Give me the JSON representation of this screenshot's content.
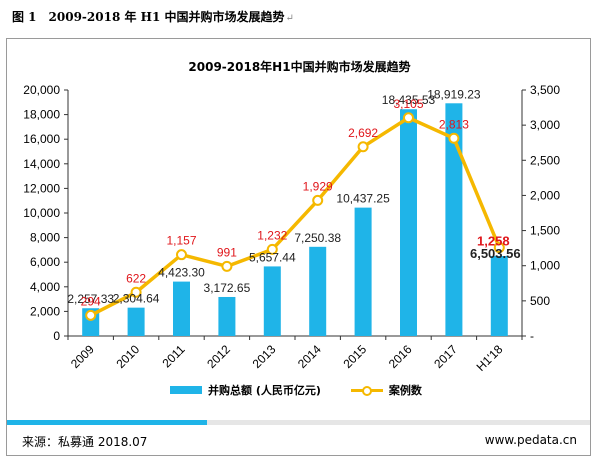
{
  "figure_caption": "图 1　2009-2018 年 H1 中国并购市场发展趋势",
  "paragraph_mark": "↵",
  "source_text": "来源：私募通 2018.07",
  "website": "www.pedata.cn",
  "colors": {
    "bar": "#1fb4e8",
    "line": "#f5b800",
    "case_label": "#e0161b"
  },
  "chart_data": {
    "type": "bar",
    "title": "2009-2018年H1中国并购市场发展趋势",
    "categories": [
      "2009",
      "2010",
      "2011",
      "2012",
      "2013",
      "2014",
      "2015",
      "2016",
      "2017",
      "H1'18"
    ],
    "series": [
      {
        "name": "并购总额 (人民币亿元)",
        "type": "bar",
        "axis": "left",
        "values": [
          2257.33,
          2304.64,
          4423.3,
          3172.65,
          5657.44,
          7250.38,
          10437.25,
          18435.53,
          18919.23,
          6503.56
        ],
        "labels": [
          "2,257.33",
          "2,304.64",
          "4,423.30",
          "3,172.65",
          "5,657.44",
          "7,250.38",
          "10,437.25",
          "18,435.53",
          "18,919.23",
          "6,503.56"
        ]
      },
      {
        "name": "案例数",
        "type": "line",
        "axis": "right",
        "values": [
          294,
          622,
          1157,
          991,
          1232,
          1929,
          2692,
          3105,
          2813,
          1258
        ],
        "labels": [
          "294",
          "622",
          "1,157",
          "991",
          "1,232",
          "1,929",
          "2,692",
          "3,105",
          "2,813",
          "1,258"
        ]
      }
    ],
    "y_left": {
      "range": [
        0,
        20000
      ],
      "ticks": [
        "0",
        "2,000",
        "4,000",
        "6,000",
        "8,000",
        "10,000",
        "12,000",
        "14,000",
        "16,000",
        "18,000",
        "20,000"
      ]
    },
    "y_right": {
      "range": [
        0,
        3500
      ],
      "ticks": [
        "-",
        "500",
        "1,000",
        "1,500",
        "2,000",
        "2,500",
        "3,000",
        "3,500"
      ]
    },
    "grid": false,
    "legend_position": "bottom"
  }
}
